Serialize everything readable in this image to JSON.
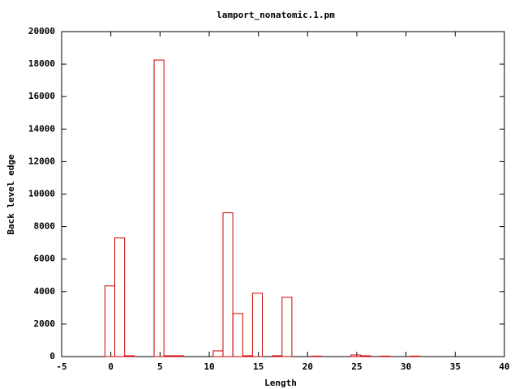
{
  "chart_data": {
    "type": "bar",
    "title": "lamport_nonatomic.1.pm",
    "xlabel": "Length",
    "ylabel": "Back level edge",
    "x": [
      0,
      1,
      2,
      5,
      6,
      7,
      11,
      12,
      13,
      14,
      15,
      17,
      18,
      21,
      25,
      26,
      28,
      31
    ],
    "values": [
      4350,
      7300,
      50,
      18250,
      50,
      50,
      350,
      8850,
      2650,
      50,
      3900,
      50,
      3650,
      30,
      100,
      50,
      30,
      30
    ],
    "color": "#cc0000",
    "xlim": [
      -5,
      40
    ],
    "xticks": [
      -5,
      0,
      5,
      10,
      15,
      20,
      25,
      30,
      35,
      40
    ],
    "ylim": [
      0,
      20000
    ],
    "yticks": [
      0,
      2000,
      4000,
      6000,
      8000,
      10000,
      12000,
      14000,
      16000,
      18000,
      20000
    ]
  }
}
